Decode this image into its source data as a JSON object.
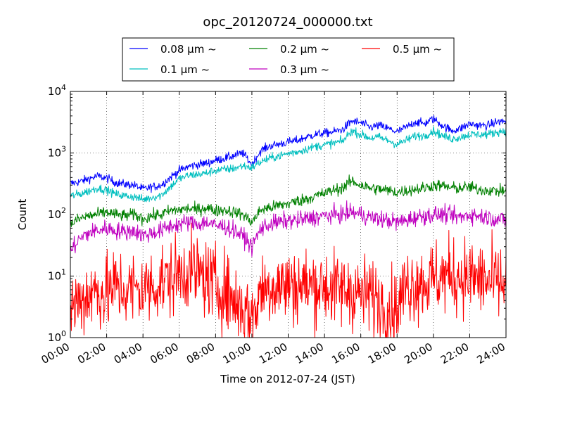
{
  "chart_data": {
    "type": "line",
    "title": "opc_20120724_000000.txt",
    "xlabel": "Time on 2012-07-24 (JST)",
    "ylabel": "Count",
    "x_unit": "hours",
    "xlim": [
      "00:00",
      "24:00"
    ],
    "ylim": [
      1,
      10000
    ],
    "y_scale": "log",
    "grid": true,
    "legend_position": "top",
    "x_tick_labels": [
      "00:00",
      "02:00",
      "04:00",
      "06:00",
      "08:00",
      "10:00",
      "12:00",
      "14:00",
      "16:00",
      "18:00",
      "20:00",
      "22:00",
      "24:00"
    ],
    "y_tick_labels": [
      {
        "base": "10",
        "exp": "0"
      },
      {
        "base": "10",
        "exp": "1"
      },
      {
        "base": "10",
        "exp": "2"
      },
      {
        "base": "10",
        "exp": "3"
      },
      {
        "base": "10",
        "exp": "4"
      }
    ],
    "x": [
      0,
      0.5,
      1,
      1.5,
      2,
      2.5,
      3,
      3.5,
      4,
      4.5,
      5,
      5.5,
      6,
      6.5,
      7,
      7.5,
      8,
      8.5,
      9,
      9.5,
      10,
      10.5,
      11,
      11.5,
      12,
      12.5,
      13,
      13.5,
      14,
      14.5,
      15,
      15.5,
      16,
      16.5,
      17,
      17.5,
      18,
      18.5,
      19,
      19.5,
      20,
      20.5,
      21,
      21.5,
      22,
      22.5,
      23,
      23.5,
      24
    ],
    "series": [
      {
        "name": "0.08 μm ~",
        "color": "#0000ff",
        "noise": 0.05,
        "values": [
          320,
          340,
          380,
          420,
          390,
          330,
          310,
          300,
          260,
          280,
          300,
          400,
          520,
          600,
          650,
          680,
          760,
          820,
          900,
          1000,
          650,
          1100,
          1300,
          1400,
          1500,
          1600,
          1800,
          2000,
          2100,
          2200,
          2400,
          3300,
          3100,
          2600,
          2800,
          2500,
          2200,
          2600,
          3200,
          3000,
          3600,
          2800,
          2300,
          2500,
          3000,
          2800,
          2800,
          3200,
          3300
        ]
      },
      {
        "name": "0.1 μm ~",
        "color": "#00bfbf",
        "noise": 0.05,
        "values": [
          200,
          215,
          240,
          270,
          250,
          215,
          200,
          195,
          175,
          190,
          205,
          280,
          380,
          430,
          450,
          470,
          520,
          540,
          560,
          620,
          580,
          720,
          820,
          900,
          980,
          1050,
          1150,
          1280,
          1350,
          1450,
          1550,
          2300,
          2000,
          1750,
          1800,
          1600,
          1380,
          1600,
          1900,
          1900,
          2300,
          1900,
          1700,
          1800,
          2000,
          2000,
          2000,
          2200,
          2300
        ]
      },
      {
        "name": "0.2 μm ~",
        "color": "#008000",
        "noise": 0.07,
        "values": [
          70,
          85,
          95,
          100,
          110,
          100,
          95,
          100,
          85,
          95,
          100,
          115,
          120,
          125,
          120,
          130,
          115,
          120,
          110,
          100,
          75,
          120,
          130,
          140,
          150,
          165,
          180,
          200,
          220,
          250,
          270,
          350,
          300,
          270,
          260,
          245,
          230,
          245,
          260,
          270,
          300,
          290,
          270,
          270,
          280,
          255,
          250,
          240,
          245
        ]
      },
      {
        "name": "0.3 μm ~",
        "color": "#bf00bf",
        "noise": 0.1,
        "values": [
          25,
          40,
          50,
          55,
          60,
          55,
          52,
          55,
          45,
          50,
          55,
          65,
          70,
          75,
          70,
          75,
          65,
          65,
          55,
          45,
          30,
          60,
          70,
          75,
          80,
          80,
          85,
          90,
          95,
          100,
          100,
          110,
          100,
          90,
          85,
          80,
          75,
          80,
          90,
          95,
          100,
          100,
          95,
          90,
          100,
          95,
          90,
          85,
          80
        ]
      },
      {
        "name": "0.5 μm ~",
        "color": "#ff0000",
        "noise": 0.45,
        "values": [
          3,
          4,
          5,
          6,
          5,
          7,
          6,
          6,
          6,
          7,
          8,
          9,
          11,
          13,
          11,
          9,
          7,
          6,
          4,
          3,
          2,
          6,
          7,
          7,
          7,
          7,
          7,
          7,
          7,
          6,
          6,
          6,
          5,
          5,
          4,
          3,
          3,
          7,
          8,
          8,
          9,
          10,
          10,
          10,
          10,
          9,
          8,
          8,
          7
        ]
      }
    ]
  }
}
